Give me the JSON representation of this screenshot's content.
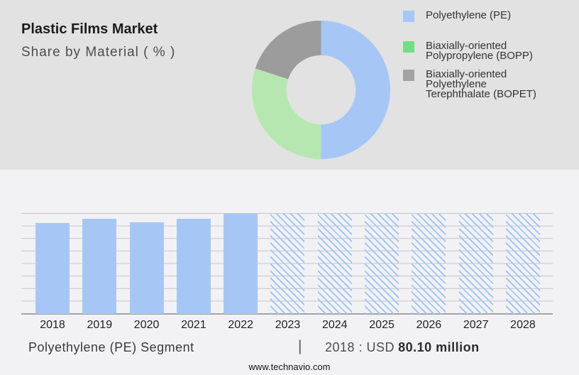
{
  "header": {
    "title": "Plastic Films Market",
    "subtitle": "Share by Material ( % )"
  },
  "colors": {
    "top_background": "#e2e2e2",
    "bottom_background": "#f2f2f4",
    "bar_blue": "#a6c7f6",
    "gridline": "#c5c5c5",
    "baseline": "#a3a3a3"
  },
  "chart_data": [
    {
      "type": "pie",
      "subtype": "donut",
      "title": "Share by Material ( % )",
      "labels": [
        "Polyethylene (PE)",
        "Biaxially-oriented Polypropylene (BOPP)",
        "Biaxially-oriented Polyethylene Terephthalate (BOPET)"
      ],
      "values": [
        50,
        30,
        20
      ],
      "colors": [
        "#a6c7f6",
        "#b7e7b0",
        "#9c9c9c"
      ],
      "inner_radius_ratio": 0.5,
      "start_angle_deg": 0,
      "direction": "clockwise",
      "legend_position": "right",
      "legend": [
        {
          "label": "Polyethylene (PE)",
          "lines": [
            "Polyethylene (PE)"
          ],
          "swatch": "#a6c7f6"
        },
        {
          "label": "Biaxially-oriented Polypropylene (BOPP)",
          "lines": [
            "Biaxially-oriented",
            "Polypropylene (BOPP)"
          ],
          "swatch": "#6fdf85"
        },
        {
          "label": "Biaxially-oriented Polyethylene Terephthalate (BOPET)",
          "lines": [
            "Biaxially-oriented",
            "Polyethylene",
            "Terephthalate (BOPET)"
          ],
          "swatch": "#a2a2a2"
        }
      ]
    },
    {
      "type": "bar",
      "title": "Polyethylene (PE) Segment",
      "unit": "USD million",
      "categories": [
        "2018",
        "2019",
        "2020",
        "2021",
        "2022",
        "2023",
        "2024",
        "2025",
        "2026",
        "2027",
        "2028"
      ],
      "bars": [
        {
          "year": "2018",
          "value": 80.1,
          "style": "solid"
        },
        {
          "year": "2019",
          "value": 83.8,
          "style": "solid",
          "estimated": true
        },
        {
          "year": "2020",
          "value": 80.7,
          "style": "solid",
          "estimated": true
        },
        {
          "year": "2021",
          "value": 83.8,
          "style": "solid",
          "estimated": true
        },
        {
          "year": "2022",
          "value": 88.2,
          "style": "solid",
          "estimated": true
        },
        {
          "year": "2023",
          "value": null,
          "style": "hatched",
          "forecast": true
        },
        {
          "year": "2024",
          "value": null,
          "style": "hatched",
          "forecast": true
        },
        {
          "year": "2025",
          "value": null,
          "style": "hatched",
          "forecast": true
        },
        {
          "year": "2026",
          "value": null,
          "style": "hatched",
          "forecast": true
        },
        {
          "year": "2027",
          "value": null,
          "style": "hatched",
          "forecast": true
        },
        {
          "year": "2028",
          "value": null,
          "style": "hatched",
          "forecast": true
        }
      ],
      "labeled_value": {
        "year": "2018",
        "value": 80.1,
        "text": "2018 : USD 80.10 million"
      },
      "ylim": [
        0,
        88.2
      ],
      "gridline_count": 9,
      "bar_color": "#a6c7f6",
      "hatched_bars_note": "forecast years drawn full-height with diagonal hatch"
    }
  ],
  "footer": {
    "segment_label": "Polyethylene (PE) Segment",
    "separator": "|",
    "value_prefix": "2018 : USD",
    "value_bold": "80.10 million"
  },
  "website": "www.technavio.com"
}
